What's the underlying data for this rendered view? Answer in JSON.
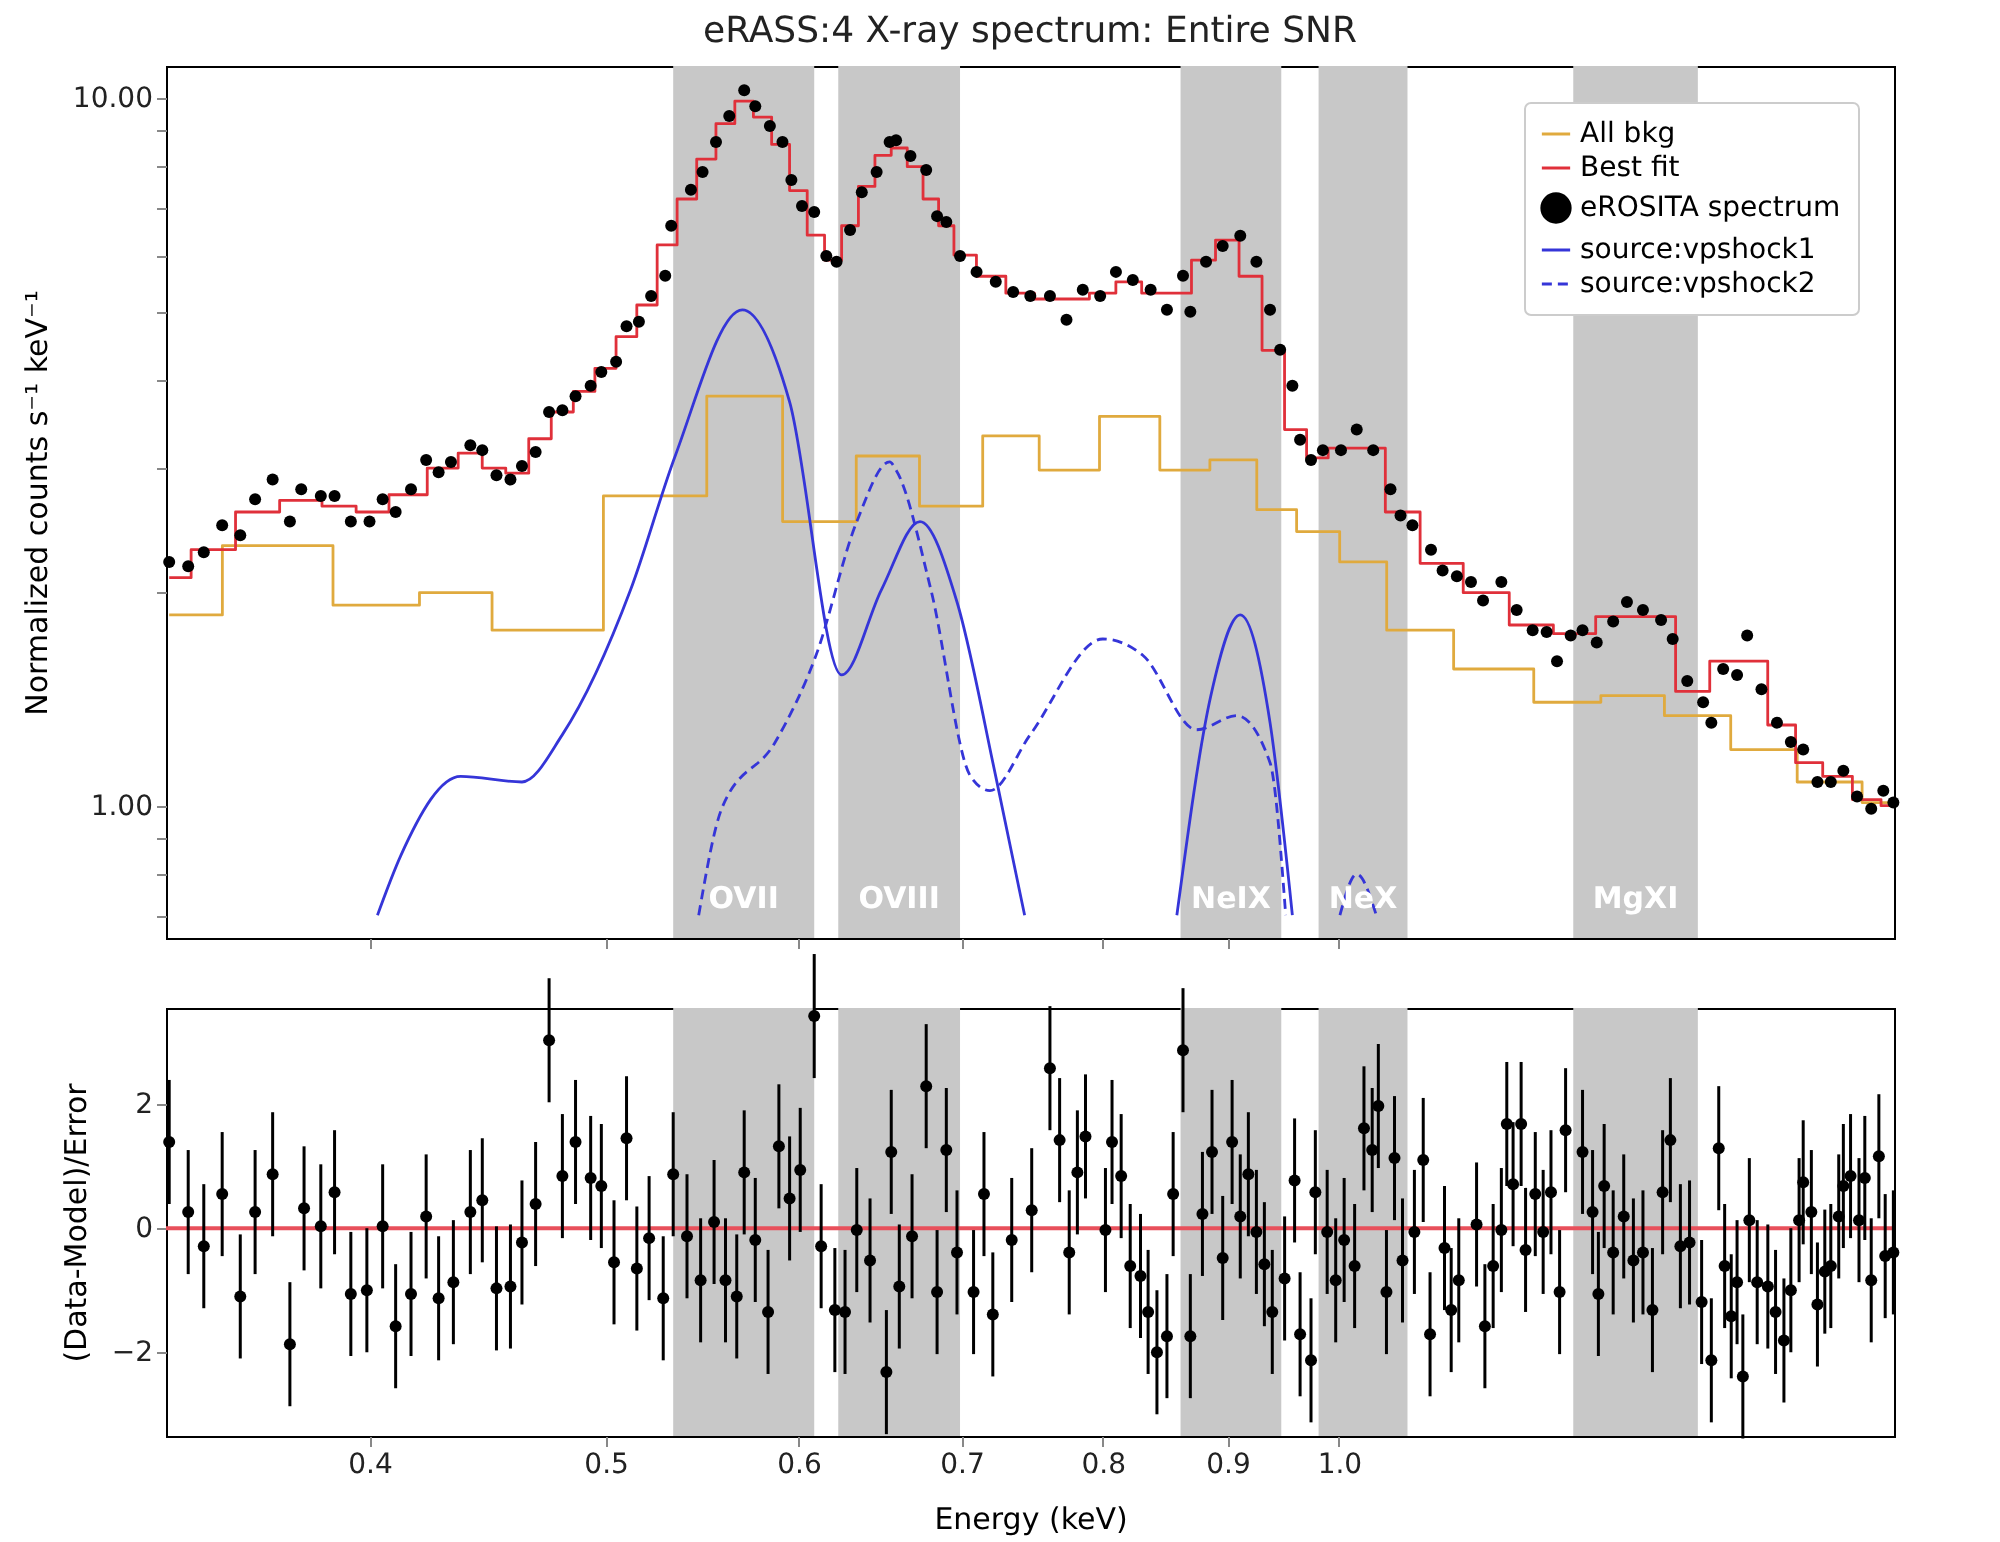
{
  "chart_data": [
    {
      "type": "line",
      "title": "eRASS:4 X-ray spectrum: Entire SNR",
      "ylabel": "Normalized counts s⁻¹ keV⁻¹",
      "log": "xy",
      "tick_labels": "y",
      "legend": "top right",
      "xlim": [
        0.33,
        1.69
      ],
      "xticks": [
        0.4,
        0.5,
        0.6,
        0.7,
        0.8,
        0.9,
        1
      ],
      "ylim": [
        0.65,
        11.1
      ],
      "yticks": [
        {
          "value": 0.7,
          "label": null
        },
        {
          "value": 0.8,
          "label": null
        },
        {
          "value": 0.9,
          "label": null
        },
        {
          "value": 1,
          "label": "1.00"
        },
        {
          "value": 2,
          "label": null
        },
        {
          "value": 3,
          "label": null
        },
        {
          "value": 4,
          "label": null
        },
        {
          "value": 5,
          "label": null
        },
        {
          "value": 6,
          "label": null
        },
        {
          "value": 7,
          "label": null
        },
        {
          "value": 8,
          "label": null
        },
        {
          "value": 9,
          "label": null
        },
        {
          "value": 10,
          "label": "10.00"
        }
      ],
      "bands": [
        {
          "axis": "x",
          "from": 0.533,
          "to": 0.609,
          "label": "OVII",
          "color": "#c8c8c8"
        },
        {
          "axis": "x",
          "from": 0.623,
          "to": 0.699,
          "label": "OVIII",
          "color": "#c8c8c8"
        },
        {
          "axis": "x",
          "from": 0.861,
          "to": 0.947,
          "label": "NeIX",
          "color": "#c8c8c8"
        },
        {
          "axis": "x",
          "from": 0.981,
          "to": 1.067,
          "label": "NeX",
          "color": "#c8c8c8"
        },
        {
          "axis": "x",
          "from": 1.248,
          "to": 1.404,
          "label": "MgXI",
          "color": "#c8c8c8"
        }
      ],
      "series": [
        {
          "name": "All bkg",
          "type": "step",
          "color": "#e0aa3e",
          "line_style": "solid",
          "x": [
            0.331,
            0.366,
            0.408,
            0.431,
            0.468,
            0.532,
            0.569,
            0.614,
            0.654,
            0.692,
            0.737,
            0.77,
            0.826,
            0.863,
            0.908,
            0.943,
            0.979,
            1.023,
            1.07,
            1.161,
            1.245,
            1.318,
            1.404,
            1.494,
            1.592,
            1.689
          ],
          "values": [
            1.86,
            2.33,
            1.92,
            2.0,
            1.77,
            2.74,
            3.79,
            2.52,
            3.12,
            2.65,
            3.33,
            2.98,
            3.55,
            2.98,
            3.08,
            2.62,
            2.44,
            2.21,
            1.77,
            1.56,
            1.4,
            1.43,
            1.34,
            1.2,
            1.08,
            1.01
          ]
        },
        {
          "name": "Best fit",
          "type": "step",
          "color": "#e0303a",
          "line_style": "solid",
          "x": [
            0.331,
            0.345,
            0.36,
            0.375,
            0.39,
            0.4,
            0.415,
            0.43,
            0.44,
            0.45,
            0.46,
            0.47,
            0.48,
            0.49,
            0.5,
            0.51,
            0.52,
            0.53,
            0.54,
            0.55,
            0.56,
            0.57,
            0.58,
            0.59,
            0.6,
            0.61,
            0.62,
            0.63,
            0.64,
            0.65,
            0.66,
            0.67,
            0.68,
            0.69,
            0.7,
            0.72,
            0.74,
            0.76,
            0.78,
            0.8,
            0.82,
            0.84,
            0.86,
            0.88,
            0.9,
            0.92,
            0.94,
            0.96,
            0.98,
            1.0,
            1.03,
            1.06,
            1.1,
            1.15,
            1.2,
            1.25,
            1.3,
            1.35,
            1.4,
            1.44,
            1.48,
            1.52,
            1.56,
            1.6,
            1.65,
            1.689
          ],
          "values": [
            2.1,
            2.3,
            2.6,
            2.7,
            2.65,
            2.6,
            2.75,
            3.0,
            3.15,
            3.0,
            2.95,
            3.3,
            3.6,
            3.85,
            4.15,
            4.6,
            5.1,
            6.2,
            7.2,
            8.2,
            9.2,
            9.9,
            9.4,
            8.6,
            7.4,
            6.4,
            5.9,
            6.6,
            7.5,
            8.3,
            8.5,
            8.0,
            7.2,
            6.6,
            6.0,
            5.6,
            5.3,
            5.2,
            5.2,
            5.3,
            5.5,
            5.3,
            5.3,
            5.9,
            6.3,
            5.6,
            4.4,
            3.4,
            3.1,
            3.2,
            3.2,
            2.6,
            2.2,
            2.0,
            1.8,
            1.75,
            1.85,
            1.85,
            1.45,
            1.6,
            1.6,
            1.3,
            1.15,
            1.1,
            1.02,
            1.0
          ]
        },
        {
          "name": "eROSITA spectrum",
          "type": "scatter",
          "color": "#000000",
          "x": [
            0.331,
            0.337,
            0.342,
            0.348,
            0.354,
            0.359,
            0.365,
            0.371,
            0.375,
            0.382,
            0.387,
            0.393,
            0.4,
            0.405,
            0.41,
            0.416,
            0.422,
            0.427,
            0.432,
            0.44,
            0.445,
            0.451,
            0.457,
            0.462,
            0.468,
            0.474,
            0.48,
            0.486,
            0.493,
            0.498,
            0.505,
            0.51,
            0.516,
            0.522,
            0.529,
            0.532,
            0.542,
            0.548,
            0.555,
            0.562,
            0.57,
            0.576,
            0.584,
            0.591,
            0.596,
            0.602,
            0.609,
            0.616,
            0.622,
            0.63,
            0.637,
            0.646,
            0.654,
            0.658,
            0.667,
            0.677,
            0.684,
            0.69,
            0.699,
            0.71,
            0.723,
            0.735,
            0.747,
            0.761,
            0.773,
            0.785,
            0.798,
            0.81,
            0.823,
            0.837,
            0.85,
            0.863,
            0.869,
            0.882,
            0.896,
            0.911,
            0.925,
            0.937,
            0.946,
            0.957,
            0.964,
            0.974,
            0.985,
            1.002,
            1.017,
            1.033,
            1.05,
            1.06,
            1.072,
            1.091,
            1.103,
            1.118,
            1.133,
            1.146,
            1.166,
            1.183,
            1.201,
            1.217,
            1.229,
            1.245,
            1.259,
            1.276,
            1.296,
            1.313,
            1.333,
            1.356,
            1.371,
            1.39,
            1.411,
            1.422,
            1.438,
            1.457,
            1.471,
            1.491,
            1.513,
            1.533,
            1.551,
            1.572,
            1.592,
            1.611,
            1.632,
            1.654,
            1.673,
            1.689
          ],
          "values": [
            2.21,
            2.18,
            2.28,
            2.49,
            2.41,
            2.71,
            2.89,
            2.52,
            2.8,
            2.74,
            2.74,
            2.52,
            2.52,
            2.71,
            2.6,
            2.8,
            3.08,
            2.96,
            3.06,
            3.23,
            3.18,
            2.93,
            2.89,
            3.02,
            3.16,
            3.6,
            3.62,
            3.79,
            3.92,
            4.1,
            4.24,
            4.76,
            4.83,
            5.25,
            5.61,
            6.6,
            7.42,
            7.86,
            8.67,
            9.43,
            10.26,
            9.74,
            9.13,
            8.67,
            7.66,
            7.04,
            6.9,
            5.98,
            5.87,
            6.51,
            7.36,
            7.86,
            8.67,
            8.72,
            8.28,
            7.91,
            6.81,
            6.68,
            5.98,
            5.68,
            5.5,
            5.32,
            5.25,
            5.25,
            4.86,
            5.36,
            5.25,
            5.68,
            5.53,
            5.36,
            5.02,
            5.61,
            4.99,
            5.87,
            6.18,
            6.39,
            5.87,
            5.02,
            4.41,
            3.92,
            3.29,
            3.08,
            3.18,
            3.18,
            3.4,
            3.18,
            2.8,
            2.57,
            2.49,
            2.3,
            2.15,
            2.11,
            2.07,
            1.95,
            2.07,
            1.89,
            1.77,
            1.76,
            1.6,
            1.74,
            1.77,
            1.7,
            1.82,
            1.94,
            1.89,
            1.83,
            1.72,
            1.5,
            1.4,
            1.31,
            1.56,
            1.53,
            1.74,
            1.46,
            1.31,
            1.23,
            1.2,
            1.08,
            1.08,
            1.12,
            1.03,
            0.99,
            1.05,
            1.01
          ],
          "marker": "circle"
        },
        {
          "name": "source:vpshock1",
          "color": "#3535d8",
          "line_style": "solid",
          "x": [
            0.403,
            0.412,
            0.436,
            0.462,
            0.48,
            0.512,
            0.534,
            0.569,
            0.595,
            0.625,
            0.649,
            0.673,
            0.697,
            0.723,
            0.743,
            null,
            0.858,
            0.886,
            0.911,
            0.937,
            0.957
          ],
          "values": [
            0.7,
            0.85,
            1.1,
            1.08,
            1.26,
            2.02,
            3.12,
            5.02,
            3.72,
            1.53,
            2.02,
            2.52,
            1.94,
            1.1,
            0.7,
            null,
            0.7,
            1.43,
            1.86,
            1.31,
            0.7
          ]
        },
        {
          "name": "source:vpshock2",
          "color": "#3535d8",
          "line_style": "dashed",
          "x": [
            0.546,
            0.558,
            0.587,
            0.61,
            0.634,
            0.654,
            0.658,
            0.68,
            0.706,
            0.719,
            0.747,
            0.8,
            0.831,
            0.874,
            0.908,
            0.937,
            0.951,
            null,
            1.001,
            1.017,
            1.036
          ],
          "values": [
            0.7,
            0.99,
            1.23,
            1.63,
            2.52,
            3.06,
            2.98,
            2.02,
            1.1,
            1.05,
            1.26,
            1.72,
            1.63,
            1.28,
            1.34,
            1.15,
            0.7,
            null,
            0.7,
            0.8,
            0.7
          ]
        }
      ]
    },
    {
      "type": "scatter",
      "xlabel": "Energy (keV)",
      "ylabel": "(Data-Model)/Error",
      "log": "x",
      "marker": "circle",
      "xlim": [
        0.33,
        1.69
      ],
      "xticks": [
        0.4,
        0.5,
        0.6,
        0.7,
        0.8,
        0.9,
        {
          "value": 1,
          "label": "1.0"
        }
      ],
      "ylim": [
        -3.35,
        3.55
      ],
      "yticks": [
        -2,
        0,
        2
      ],
      "bands": [
        {
          "axis": "x",
          "from": 0.533,
          "to": 0.609,
          "color": "#c8c8c8"
        },
        {
          "axis": "x",
          "from": 0.623,
          "to": 0.699,
          "color": "#c8c8c8"
        },
        {
          "axis": "x",
          "from": 0.861,
          "to": 0.947,
          "color": "#c8c8c8"
        },
        {
          "axis": "x",
          "from": 0.981,
          "to": 1.067,
          "color": "#c8c8c8"
        },
        {
          "axis": "x",
          "from": 1.248,
          "to": 1.404,
          "color": "#c8c8c8"
        }
      ],
      "ref_lines": [
        {
          "axis": "y",
          "value": 0,
          "color": "#e8505b"
        }
      ],
      "series": [
        {
          "color": "#000000",
          "x": [
            0.331,
            0.337,
            0.342,
            0.348,
            0.354,
            0.359,
            0.365,
            0.371,
            0.376,
            0.382,
            0.387,
            0.393,
            0.399,
            0.405,
            0.41,
            0.416,
            0.422,
            0.427,
            0.433,
            0.44,
            0.445,
            0.451,
            0.457,
            0.462,
            0.468,
            0.474,
            0.48,
            0.486,
            0.493,
            0.498,
            0.504,
            0.51,
            0.515,
            0.521,
            0.528,
            0.533,
            0.54,
            0.547,
            0.554,
            0.56,
            0.566,
            0.57,
            0.576,
            0.583,
            0.589,
            0.595,
            0.601,
            0.609,
            0.613,
            0.621,
            0.627,
            0.634,
            0.642,
            0.652,
            0.655,
            0.66,
            0.668,
            0.677,
            0.684,
            0.69,
            0.697,
            0.708,
            0.715,
            0.721,
            0.734,
            0.748,
            0.761,
            0.768,
            0.775,
            0.781,
            0.787,
            0.802,
            0.807,
            0.814,
            0.821,
            0.829,
            0.835,
            0.842,
            0.85,
            0.855,
            0.863,
            0.869,
            0.879,
            0.887,
            0.896,
            0.904,
            0.911,
            0.918,
            0.925,
            0.932,
            0.939,
            0.95,
            0.959,
            0.964,
            0.974,
            0.978,
            0.989,
            0.997,
            1.005,
            1.015,
            1.024,
            1.032,
            1.038,
            1.046,
            1.054,
            1.062,
            1.074,
            1.083,
            1.09,
            1.105,
            1.112,
            1.12,
            1.139,
            1.148,
            1.157,
            1.166,
            1.172,
            1.179,
            1.188,
            1.193,
            1.204,
            1.213,
            1.222,
            1.232,
            1.239,
            1.259,
            1.271,
            1.278,
            1.285,
            1.296,
            1.309,
            1.321,
            1.333,
            1.345,
            1.358,
            1.368,
            1.381,
            1.393,
            1.409,
            1.422,
            1.432,
            1.44,
            1.449,
            1.457,
            1.465,
            1.474,
            1.485,
            1.5,
            1.511,
            1.523,
            1.533,
            1.545,
            1.551,
            1.563,
            1.572,
            1.583,
            1.592,
            1.604,
            1.611,
            1.622,
            1.635,
            1.644,
            1.654,
            1.666,
            1.676,
            1.689
          ],
          "values": [
            1.39,
            0.26,
            -0.29,
            0.55,
            -1.1,
            0.26,
            0.87,
            -1.87,
            0.32,
            0.03,
            0.58,
            -1.06,
            -1.0,
            0.03,
            -1.58,
            -1.06,
            0.19,
            -1.13,
            -0.87,
            0.26,
            0.45,
            -0.97,
            -0.94,
            -0.23,
            0.39,
            3.03,
            0.84,
            1.39,
            0.81,
            0.68,
            -0.55,
            1.45,
            -0.65,
            -0.16,
            -1.13,
            0.87,
            -0.13,
            -0.84,
            0.1,
            -0.84,
            -1.1,
            0.9,
            -0.19,
            -1.35,
            1.32,
            0.48,
            0.94,
            3.42,
            -0.29,
            -1.32,
            -1.35,
            -0.03,
            -0.52,
            -2.32,
            1.23,
            -0.94,
            -0.13,
            2.29,
            -1.03,
            1.26,
            -0.39,
            -1.03,
            0.55,
            -1.39,
            -0.19,
            0.29,
            2.58,
            1.42,
            -0.39,
            0.9,
            1.48,
            -0.03,
            1.39,
            0.84,
            -0.61,
            -0.77,
            -1.35,
            -2.0,
            -1.74,
            0.55,
            2.87,
            -1.74,
            0.23,
            1.23,
            -0.48,
            1.39,
            0.19,
            0.87,
            -0.06,
            -0.58,
            -1.35,
            -0.81,
            0.77,
            -1.71,
            -2.13,
            0.58,
            -0.06,
            -0.84,
            -0.19,
            -0.61,
            1.61,
            1.26,
            1.97,
            -1.03,
            1.13,
            -0.52,
            -0.06,
            1.1,
            -1.71,
            -0.32,
            -1.32,
            -0.84,
            0.06,
            -1.58,
            -0.61,
            -0.03,
            1.68,
            0.71,
            1.68,
            -0.35,
            0.55,
            -0.06,
            0.58,
            -1.03,
            1.58,
            1.23,
            0.26,
            -1.06,
            0.68,
            -0.39,
            0.19,
            -0.52,
            -0.39,
            -1.32,
            0.58,
            1.42,
            -0.29,
            -0.23,
            -1.19,
            -2.13,
            1.29,
            -0.61,
            -1.42,
            -0.87,
            -2.39,
            0.13,
            -0.87,
            -0.94,
            -1.35,
            -1.81,
            -1.0,
            0.13,
            0.74,
            0.26,
            -1.23,
            -0.7,
            -0.61,
            0.19,
            0.68,
            0.84,
            0.13,
            0.81,
            -0.84,
            1.16,
            -0.45,
            -0.39
          ],
          "errors": [
            1,
            1,
            1,
            1,
            1,
            1,
            1,
            1,
            1,
            1,
            1,
            1,
            1,
            1,
            1,
            1,
            1,
            1,
            1,
            1,
            1,
            1,
            1,
            1,
            1,
            1,
            1,
            1,
            1,
            1,
            1,
            1,
            1,
            1,
            1,
            1,
            1,
            1,
            1,
            1,
            1,
            1,
            1,
            1,
            1,
            1,
            1,
            1,
            1,
            1,
            1,
            1,
            1,
            1,
            1,
            1,
            1,
            1,
            1,
            1,
            1,
            1,
            1,
            1,
            1,
            1,
            1,
            1,
            1,
            1,
            1,
            1,
            1,
            1,
            1,
            1,
            1,
            1,
            1,
            1,
            1,
            1,
            1,
            1,
            1,
            1,
            1,
            1,
            1,
            1,
            1,
            1,
            1,
            1,
            1,
            1,
            1,
            1,
            1,
            1,
            1,
            1,
            1,
            1,
            1,
            1,
            1,
            1,
            1,
            1,
            1,
            1,
            1,
            1,
            1,
            1,
            1,
            1,
            1,
            1,
            1,
            1,
            1,
            1,
            1,
            1,
            1,
            1,
            1,
            1,
            1,
            1,
            1,
            1,
            1,
            1,
            1,
            1,
            1,
            1,
            1,
            1,
            1,
            1,
            1,
            1,
            1,
            1,
            1,
            1,
            1,
            1,
            1,
            1,
            1,
            1,
            1,
            1,
            1,
            1,
            1,
            1,
            1,
            1,
            1,
            1
          ]
        }
      ]
    }
  ]
}
